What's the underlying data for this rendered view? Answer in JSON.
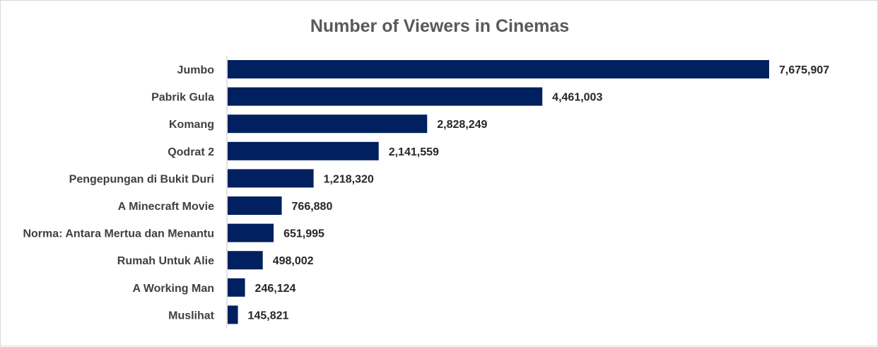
{
  "chart_data": {
    "type": "bar",
    "orientation": "horizontal",
    "title": "Number of Viewers in Cinemas",
    "categories": [
      "Jumbo",
      "Pabrik Gula",
      "Komang",
      "Qodrat 2",
      "Pengepungan di Bukit Duri",
      "A Minecraft Movie",
      "Norma: Antara Mertua dan Menantu",
      "Rumah Untuk Alie",
      "A Working Man",
      "Muslihat"
    ],
    "values": [
      7675907,
      4461003,
      2828249,
      2141559,
      1218320,
      766880,
      651995,
      498002,
      246124,
      145821
    ],
    "value_labels": [
      "7,675,907",
      "4,461,003",
      "2,828,249",
      "2,141,559",
      "1,218,320",
      "766,880",
      "651,995",
      "498,002",
      "246,124",
      "145,821"
    ],
    "xlabel": "",
    "ylabel": "",
    "xlim": [
      0,
      7675907
    ],
    "grid": false,
    "legend": "none",
    "bar_color": "#002060"
  }
}
